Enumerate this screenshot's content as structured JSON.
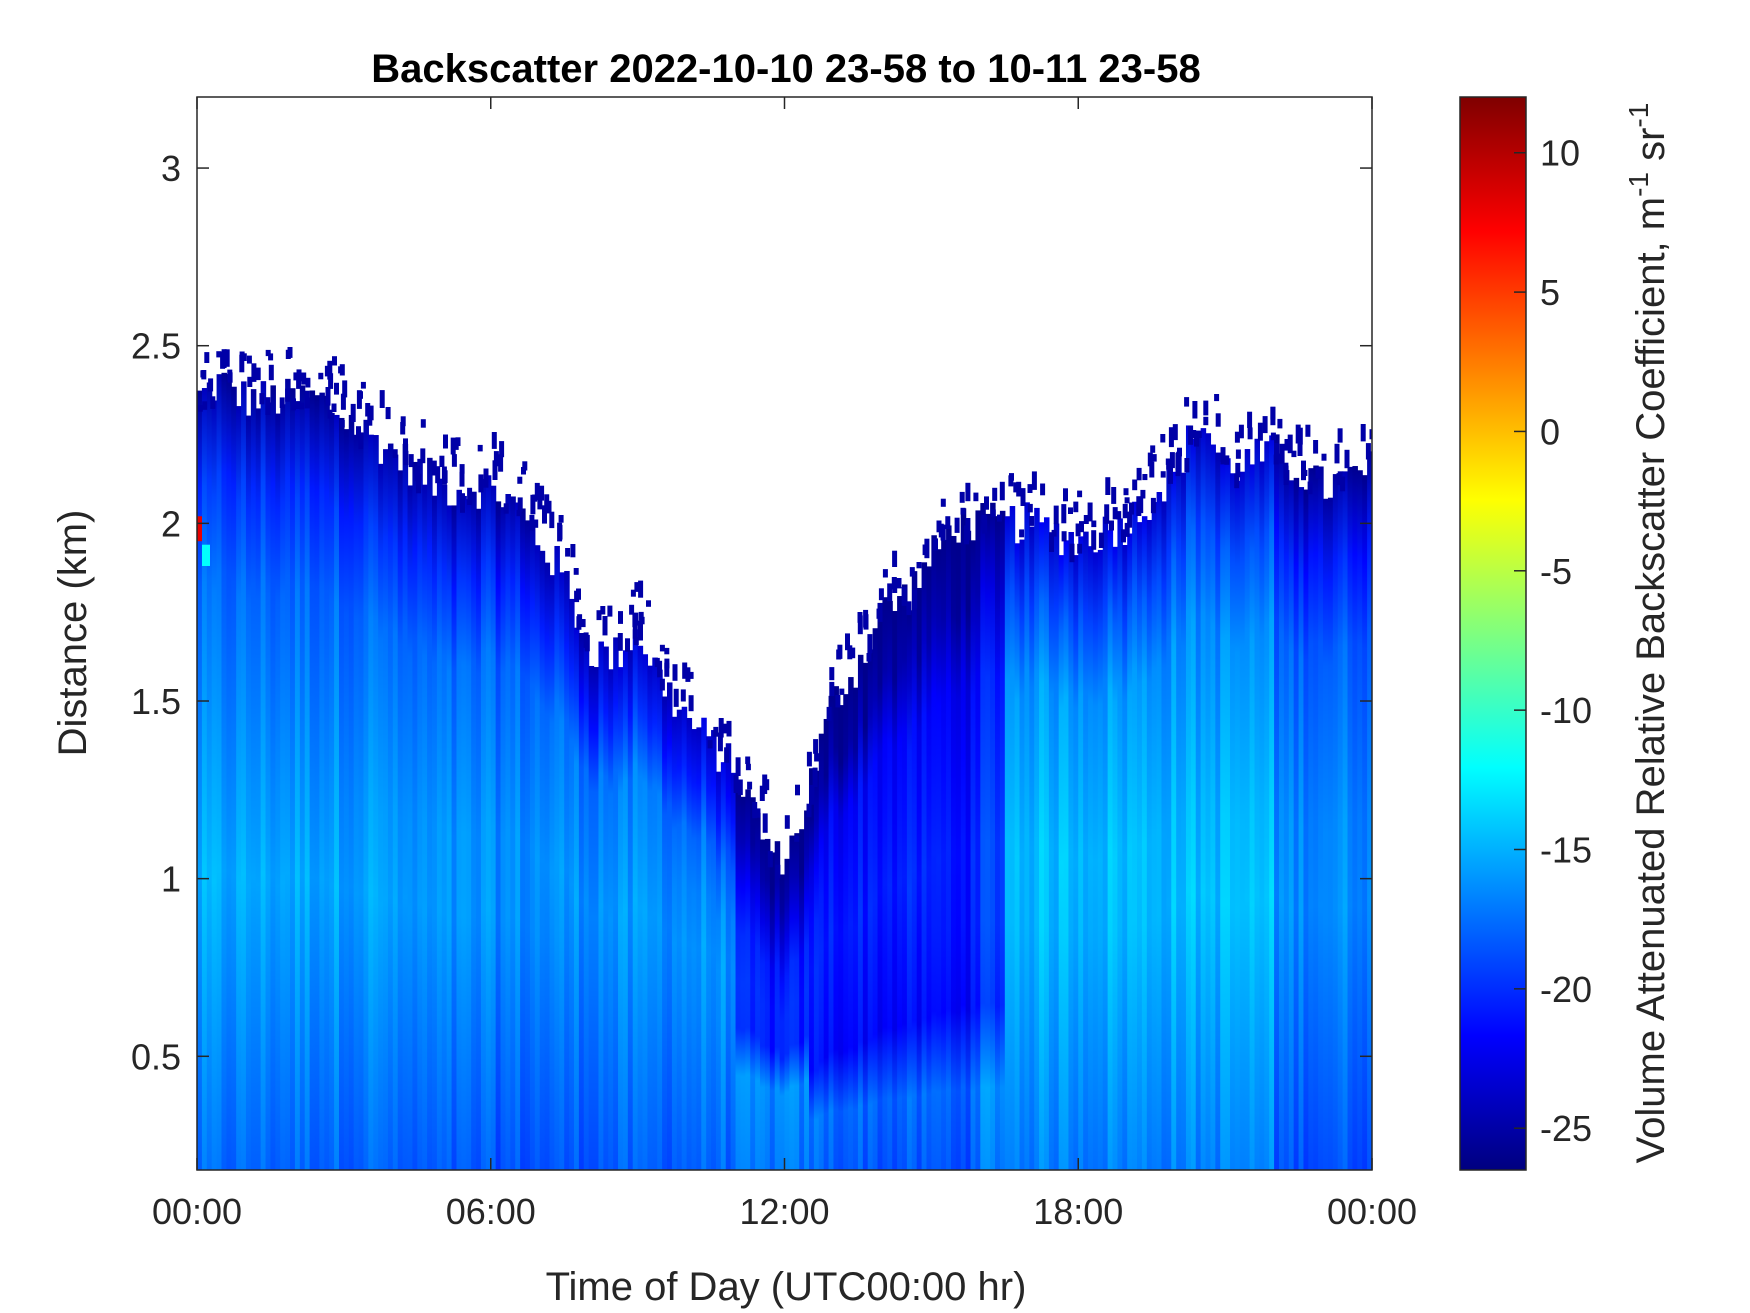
{
  "chart_data": {
    "type": "heatmap",
    "title": "Backscatter 2022-10-10 23-58 to 10-11 23-58",
    "xlabel": "Time of Day (UTC00:00 hr)",
    "ylabel": "Distance (km)",
    "xlim": [
      0,
      24
    ],
    "ylim": [
      0.18,
      3.2
    ],
    "x_ticks": [
      0,
      6,
      12,
      18,
      24
    ],
    "x_tick_labels": [
      "00:00",
      "06:00",
      "12:00",
      "18:00",
      "00:00"
    ],
    "y_ticks": [
      0.5,
      1,
      1.5,
      2,
      2.5,
      3
    ],
    "y_tick_labels": [
      "0.5",
      "1",
      "1.5",
      "2",
      "2.5",
      "3"
    ],
    "colorbar": {
      "label_main": "Volume Attenuated Relative Backscatter Coefficient, m",
      "label_sup1": "-1",
      "label_mid": " sr",
      "label_sup2": "-1",
      "range": [
        -26.5,
        12
      ],
      "ticks": [
        10,
        5,
        0,
        -5,
        -10,
        -15,
        -20,
        -25
      ],
      "tick_labels": [
        "10",
        "5",
        "0",
        "-5",
        "-10",
        "-15",
        "-20",
        "-25"
      ],
      "colormap": "jet",
      "stops": [
        "#00007f",
        "#0000ff",
        "#007fff",
        "#00ffff",
        "#7fff7f",
        "#ffff00",
        "#ff7f00",
        "#ff0000",
        "#7f0000"
      ]
    },
    "signal_top_km": [
      [
        0.0,
        2.35
      ],
      [
        0.5,
        2.4
      ],
      [
        1.0,
        2.35
      ],
      [
        1.5,
        2.35
      ],
      [
        2.0,
        2.35
      ],
      [
        2.5,
        2.35
      ],
      [
        3.0,
        2.3
      ],
      [
        3.5,
        2.25
      ],
      [
        4.0,
        2.2
      ],
      [
        4.5,
        2.15
      ],
      [
        5.0,
        2.1
      ],
      [
        6.0,
        2.1
      ],
      [
        6.5,
        2.05
      ],
      [
        7.0,
        1.95
      ],
      [
        7.5,
        1.85
      ],
      [
        8.0,
        1.65
      ],
      [
        8.5,
        1.62
      ],
      [
        9.0,
        1.7
      ],
      [
        9.5,
        1.55
      ],
      [
        10.0,
        1.45
      ],
      [
        10.5,
        1.38
      ],
      [
        11.0,
        1.3
      ],
      [
        11.5,
        1.15
      ],
      [
        11.8,
        1.05
      ],
      [
        12.2,
        1.1
      ],
      [
        12.6,
        1.3
      ],
      [
        13.0,
        1.5
      ],
      [
        13.5,
        1.6
      ],
      [
        14.0,
        1.75
      ],
      [
        14.5,
        1.8
      ],
      [
        15.0,
        1.9
      ],
      [
        15.5,
        2.0
      ],
      [
        16.0,
        2.0
      ],
      [
        17.0,
        2.0
      ],
      [
        18.0,
        1.95
      ],
      [
        19.0,
        2.0
      ],
      [
        20.0,
        2.15
      ],
      [
        20.5,
        2.3
      ],
      [
        21.0,
        2.15
      ],
      [
        22.0,
        2.2
      ],
      [
        23.0,
        2.1
      ],
      [
        24.0,
        2.15
      ]
    ]
  }
}
